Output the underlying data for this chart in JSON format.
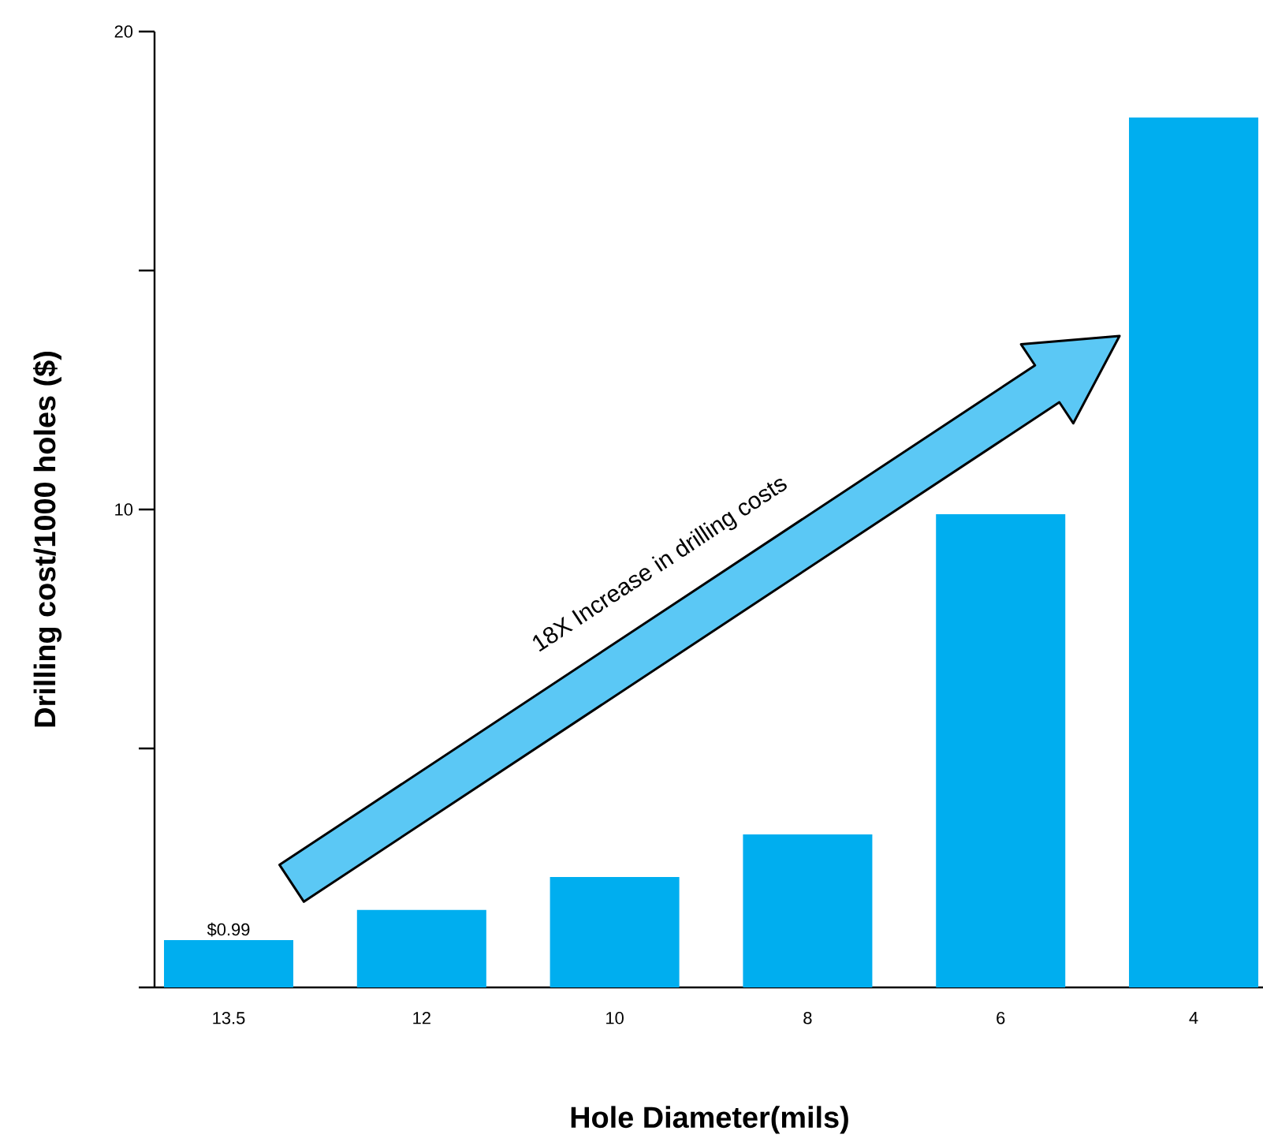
{
  "chart_data": {
    "type": "bar",
    "xlabel": "Hole Diameter(mils)",
    "ylabel": "Drilling cost/1000 holes ($)",
    "categories": [
      "13.5",
      "12",
      "10",
      "8",
      "6",
      "4"
    ],
    "values": [
      0.99,
      1.62,
      2.31,
      3.2,
      9.9,
      18.2
    ],
    "value_labels": [
      "$0.99",
      null,
      null,
      null,
      null,
      null
    ],
    "color": "#00aeef",
    "ylim": [
      0,
      20
    ],
    "yticks": [
      {
        "value": 0,
        "label": null
      },
      {
        "value": 5,
        "label": null
      },
      10,
      {
        "value": 15,
        "label": null
      },
      20
    ],
    "annotations": [
      "18X Increase in drilling costs"
    ]
  }
}
